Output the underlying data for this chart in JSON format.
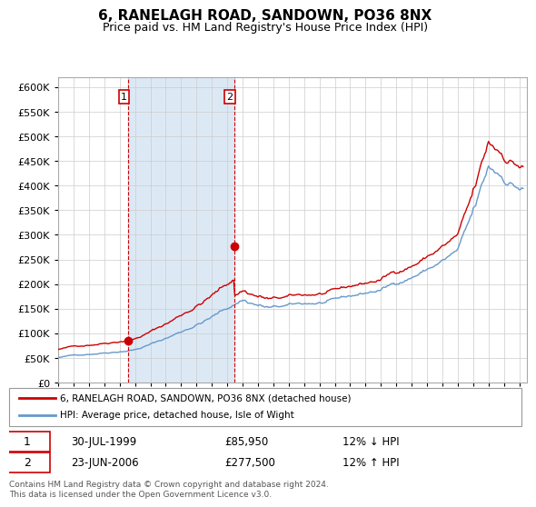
{
  "title": "6, RANELAGH ROAD, SANDOWN, PO36 8NX",
  "subtitle": "Price paid vs. HM Land Registry's House Price Index (HPI)",
  "legend_line1": "6, RANELAGH ROAD, SANDOWN, PO36 8NX (detached house)",
  "legend_line2": "HPI: Average price, detached house, Isle of Wight",
  "transaction1_date": "30-JUL-1999",
  "transaction1_price": 85950,
  "transaction1_label": "12% ↓ HPI",
  "transaction1_x": 1999.58,
  "transaction2_date": "23-JUN-2006",
  "transaction2_price": 277500,
  "transaction2_label": "12% ↑ HPI",
  "transaction2_x": 2006.47,
  "highlight_start": 1999.58,
  "highlight_end": 2006.47,
  "ylim": [
    0,
    620000
  ],
  "xlim_start": 1995.0,
  "xlim_end": 2025.5,
  "background_color": "#ffffff",
  "plot_bg_color": "#ffffff",
  "highlight_color": "#dce9f5",
  "grid_color": "#cccccc",
  "red_line_color": "#cc0000",
  "blue_line_color": "#6699cc",
  "dashed_line_color": "#cc0000",
  "footer_text": "Contains HM Land Registry data © Crown copyright and database right 2024.\nThis data is licensed under the Open Government Licence v3.0.",
  "yticks": [
    0,
    50000,
    100000,
    150000,
    200000,
    250000,
    300000,
    350000,
    400000,
    450000,
    500000,
    550000,
    600000
  ],
  "ytick_labels": [
    "£0",
    "£50K",
    "£100K",
    "£150K",
    "£200K",
    "£250K",
    "£300K",
    "£350K",
    "£400K",
    "£450K",
    "£500K",
    "£550K",
    "£600K"
  ]
}
